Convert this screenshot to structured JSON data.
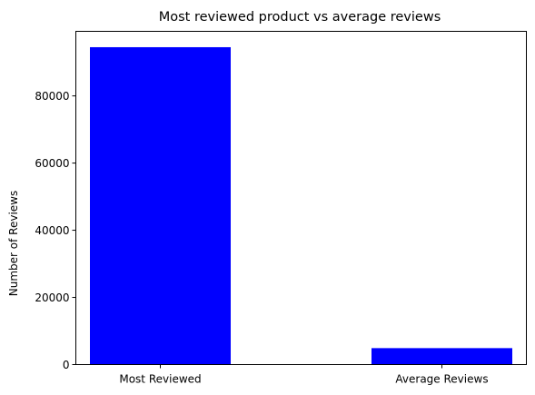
{
  "chart_data": {
    "type": "bar",
    "title": "Most reviewed product vs average reviews",
    "xlabel": "",
    "ylabel": "Number of Reviews",
    "categories": [
      "Most Reviewed",
      "Average Reviews"
    ],
    "values": [
      94500,
      4900
    ],
    "ylim": [
      0,
      99225
    ],
    "yticks": [
      0,
      20000,
      40000,
      60000,
      80000
    ],
    "bar_color": "#0000ff",
    "grid": false,
    "legend": "none"
  }
}
